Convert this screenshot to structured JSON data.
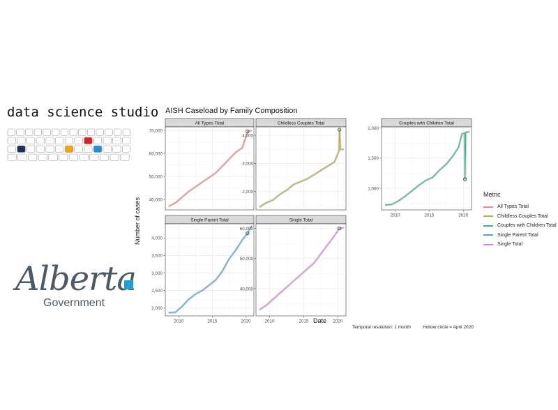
{
  "brand": {
    "title": "data science studio",
    "key_colors": {
      "navy": "#1f2d5a",
      "red": "#e02020",
      "orange": "#f5a30a",
      "blue": "#1b8fe0"
    }
  },
  "logo": {
    "wordmark": "Alberta",
    "subtitle": "Government",
    "color": "#4e5a63",
    "accent": "#21a0d2"
  },
  "chart_title": "AISH Caseload by Family Composition",
  "y_axis_title": "Number of cases",
  "x_axis_title": "Date",
  "caption_left": "Temporal resolution: 1 month",
  "caption_right": "Hollow circle = April 2020",
  "legend": {
    "title": "Metric",
    "items": [
      {
        "label": "All Types Total",
        "color": "#f08a80"
      },
      {
        "label": "Childless Couples Total",
        "color": "#b8b23a"
      },
      {
        "label": "Couples with Children Total",
        "color": "#2fb888"
      },
      {
        "label": "Single Parent Total",
        "color": "#40a8e0"
      },
      {
        "label": "Single Total",
        "color": "#d58ee0"
      }
    ]
  },
  "chart_data": [
    {
      "type": "line",
      "title": "All Types Total",
      "color": "#f08a80",
      "xlim": [
        2008,
        2021.2
      ],
      "ylim": [
        35500,
        71500
      ],
      "x_ticks": [
        2010,
        2015,
        2020
      ],
      "y_ticks": [
        40000,
        50000,
        60000,
        70000
      ],
      "y_tick_labels": [
        "40,000",
        "50,000",
        "60,000",
        "70,000"
      ],
      "series": [
        {
          "x": [
            2008.5,
            2009.5,
            2010.5,
            2011.5,
            2012.5,
            2013.5,
            2014.5,
            2015.5,
            2016.5,
            2017.5,
            2018.5,
            2019.5,
            2020.25,
            2020.9
          ],
          "y": [
            37000,
            38500,
            41000,
            43500,
            45500,
            47500,
            49500,
            51500,
            54500,
            57500,
            60500,
            62500,
            69500,
            70000
          ]
        }
      ],
      "april_2020": {
        "x": 2020.25,
        "y": 69500
      },
      "x_axis_ticks_shown": false
    },
    {
      "type": "line",
      "title": "Childless Couples Total",
      "color": "#b8b23a",
      "xlim": [
        2008,
        2021.2
      ],
      "ylim": [
        1350,
        4300
      ],
      "x_ticks": [
        2010,
        2015,
        2020
      ],
      "y_ticks": [
        2000,
        3000,
        4000
      ],
      "y_tick_labels": [
        "2,000",
        "3,000",
        "4,000"
      ],
      "series": [
        {
          "x": [
            2008.5,
            2009.5,
            2010.5,
            2011.5,
            2012.5,
            2013.5,
            2014.5,
            2015.5,
            2016.5,
            2017.5,
            2018.5,
            2019.5,
            2020.2,
            2020.25,
            2020.4,
            2020.9
          ],
          "y": [
            1450,
            1600,
            1700,
            1900,
            2050,
            2250,
            2350,
            2450,
            2600,
            2750,
            2900,
            3050,
            3450,
            4200,
            3500,
            3500
          ]
        }
      ],
      "april_2020": {
        "x": 2020.25,
        "y": 4200
      },
      "x_axis_ticks_shown": false
    },
    {
      "type": "line",
      "title": "Couples with Children Total",
      "color": "#2fb888",
      "xlim": [
        2008,
        2021.2
      ],
      "ylim": [
        640,
        2020
      ],
      "x_ticks": [
        2010,
        2015,
        2020
      ],
      "y_ticks": [
        1000,
        1500,
        2000
      ],
      "y_tick_labels": [
        "1,000",
        "1,500",
        "2,000"
      ],
      "series": [
        {
          "x": [
            2008.5,
            2009.5,
            2010.5,
            2011.5,
            2012.5,
            2013.5,
            2014.5,
            2015.5,
            2016.5,
            2017.5,
            2018.5,
            2019.3,
            2019.8,
            2020.2,
            2020.25,
            2020.35,
            2020.9
          ],
          "y": [
            720,
            730,
            790,
            870,
            960,
            1050,
            1130,
            1180,
            1300,
            1400,
            1540,
            1680,
            1900,
            1920,
            1150,
            1930,
            1940
          ]
        }
      ],
      "april_2020": {
        "x": 2020.25,
        "y": 1150
      },
      "x_axis_ticks_shown": true
    },
    {
      "type": "line",
      "title": "Single Parent Total",
      "color": "#40a8e0",
      "xlim": [
        2008,
        2021.2
      ],
      "ylim": [
        1780,
        4400
      ],
      "x_ticks": [
        2010,
        2015,
        2020
      ],
      "y_ticks": [
        2000,
        2500,
        3000,
        3500,
        4000
      ],
      "y_tick_labels": [
        "2,000",
        "2,500",
        "3,000",
        "3,500",
        "4,000"
      ],
      "series": [
        {
          "x": [
            2008.5,
            2009.5,
            2010.5,
            2011.5,
            2012.5,
            2013.5,
            2014.5,
            2015.5,
            2016.5,
            2017.5,
            2018.5,
            2019.5,
            2020.25,
            2020.9
          ],
          "y": [
            1870,
            1880,
            2050,
            2250,
            2400,
            2500,
            2650,
            2800,
            3050,
            3400,
            3650,
            3950,
            4130,
            4350
          ]
        }
      ],
      "april_2020": {
        "x": 2020.25,
        "y": 4130
      },
      "x_axis_ticks_shown": true
    },
    {
      "type": "line",
      "title": "Single Total",
      "color": "#d58ee0",
      "xlim": [
        2008,
        2021.2
      ],
      "ylim": [
        31000,
        61500
      ],
      "x_ticks": [
        2010,
        2015,
        2020
      ],
      "y_ticks": [
        40000,
        50000,
        60000
      ],
      "y_tick_labels": [
        "40,000",
        "50,000",
        "60,000"
      ],
      "series": [
        {
          "x": [
            2008.5,
            2009.5,
            2010.5,
            2011.5,
            2012.5,
            2013.5,
            2014.5,
            2015.5,
            2016.5,
            2017.5,
            2018.5,
            2019.5,
            2020.25,
            2020.9
          ],
          "y": [
            33000,
            34500,
            36500,
            38500,
            40500,
            42500,
            44500,
            46500,
            48500,
            51500,
            54500,
            57500,
            60000,
            60200
          ]
        }
      ],
      "april_2020": {
        "x": 2020.25,
        "y": 60000
      },
      "x_axis_ticks_shown": true
    }
  ]
}
